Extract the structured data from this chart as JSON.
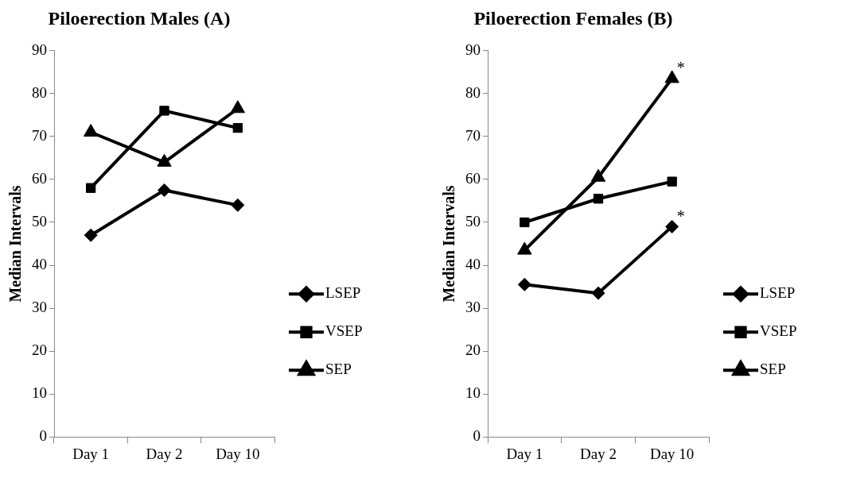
{
  "chart_data": [
    {
      "type": "line",
      "title": "Piloerection Males (A)",
      "ylabel": "Median Intervals",
      "categories": [
        "Day 1",
        "Day 2",
        "Day 10"
      ],
      "ylim": [
        0,
        90
      ],
      "yticks": [
        0,
        10,
        20,
        30,
        40,
        50,
        60,
        70,
        80,
        90
      ],
      "grid": false,
      "legend": "right",
      "line_style": "solid",
      "series": [
        {
          "name": "LSEP",
          "color": "#000000",
          "marker": "diamond",
          "values": [
            47,
            57.5,
            54
          ]
        },
        {
          "name": "VSEP",
          "color": "#000000",
          "marker": "square",
          "values": [
            58,
            76,
            72
          ]
        },
        {
          "name": "SEP",
          "color": "#000000",
          "marker": "triangle",
          "values": [
            71,
            64,
            76.5
          ]
        }
      ]
    },
    {
      "type": "line",
      "title": "Piloerection Females (B)",
      "ylabel": "Median Intervals",
      "categories": [
        "Day 1",
        "Day 2",
        "Day 10"
      ],
      "ylim": [
        0,
        90
      ],
      "yticks": [
        0,
        10,
        20,
        30,
        40,
        50,
        60,
        70,
        80,
        90
      ],
      "grid": false,
      "legend": "right",
      "line_style": "solid",
      "annotations": [
        {
          "text": "*",
          "x": "Day 10",
          "y": 83.5
        },
        {
          "text": "*",
          "x": "Day 10",
          "y": 49
        }
      ],
      "series": [
        {
          "name": "LSEP",
          "color": "#000000",
          "marker": "diamond",
          "values": [
            35.5,
            33.5,
            49
          ]
        },
        {
          "name": "VSEP",
          "color": "#000000",
          "marker": "square",
          "values": [
            50,
            55.5,
            59.5
          ]
        },
        {
          "name": "SEP",
          "color": "#000000",
          "marker": "triangle",
          "values": [
            43.5,
            60.5,
            83.5
          ]
        }
      ]
    }
  ]
}
